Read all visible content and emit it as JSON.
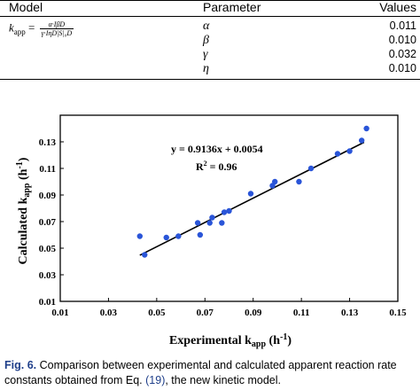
{
  "table": {
    "headers": [
      "Model",
      "Parameter",
      "Values"
    ],
    "model_lhs": "k",
    "model_lhs_sub": "app",
    "model_equals": " = ",
    "model_numerator": "α·IβD",
    "model_denominator": "γ·IηD|S|₀D",
    "rows": [
      {
        "param": "α",
        "value": "0.011"
      },
      {
        "param": "β",
        "value": "0.010"
      },
      {
        "param": "γ",
        "value": "0.032"
      },
      {
        "param": "η",
        "value": "0.010"
      }
    ]
  },
  "chart_data": {
    "type": "scatter",
    "ylabel_main": "Calculated k",
    "ylabel_sub": "app",
    "ylabel_unit": " (h",
    "ylabel_sup": "-1",
    "ylabel_close": ")",
    "xlabel_main": "Experimental k",
    "xlabel_sub": "app",
    "xlabel_unit": " (h",
    "xlabel_sup": "-1",
    "xlabel_close": ")",
    "xlim": [
      0.01,
      0.15
    ],
    "ylim": [
      0.01,
      0.15
    ],
    "x_ticks": [
      "0.01",
      "0.03",
      "0.05",
      "0.07",
      "0.09",
      "0.11",
      "0.13",
      "0.15"
    ],
    "y_ticks": [
      "0.01",
      "0.03",
      "0.05",
      "0.07",
      "0.09",
      "0.11",
      "0.13"
    ],
    "grid": false,
    "equation": "y = 0.9136x + 0.0054",
    "r2_label": "R",
    "r2_sup": "2",
    "r2_value": " = 0.96",
    "fit": {
      "slope": 0.9136,
      "intercept": 0.0054,
      "x_range": [
        0.043,
        0.136
      ]
    },
    "points": [
      {
        "x": 0.043,
        "y": 0.059
      },
      {
        "x": 0.045,
        "y": 0.045
      },
      {
        "x": 0.054,
        "y": 0.058
      },
      {
        "x": 0.059,
        "y": 0.059
      },
      {
        "x": 0.067,
        "y": 0.069
      },
      {
        "x": 0.068,
        "y": 0.06
      },
      {
        "x": 0.072,
        "y": 0.069
      },
      {
        "x": 0.073,
        "y": 0.073
      },
      {
        "x": 0.077,
        "y": 0.069
      },
      {
        "x": 0.078,
        "y": 0.077
      },
      {
        "x": 0.08,
        "y": 0.078
      },
      {
        "x": 0.089,
        "y": 0.091
      },
      {
        "x": 0.098,
        "y": 0.097
      },
      {
        "x": 0.099,
        "y": 0.1
      },
      {
        "x": 0.109,
        "y": 0.1
      },
      {
        "x": 0.114,
        "y": 0.11
      },
      {
        "x": 0.125,
        "y": 0.121
      },
      {
        "x": 0.13,
        "y": 0.123
      },
      {
        "x": 0.135,
        "y": 0.131
      },
      {
        "x": 0.137,
        "y": 0.14
      }
    ],
    "marker_color": "#2a55d8"
  },
  "caption": {
    "fig_label": "Fig. 6.",
    "text_before": " Comparison between experimental and calculated apparent reaction rate constants obtained from Eq. ",
    "eq_ref": "(19)",
    "text_after": ", the new kinetic model."
  }
}
